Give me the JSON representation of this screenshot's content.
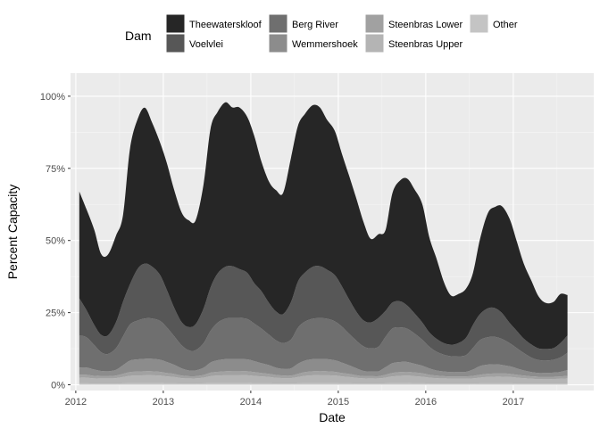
{
  "chart_data": {
    "type": "area",
    "stacked": true,
    "xlabel": "Date",
    "ylabel": "Percent Capacity",
    "legend_title": "Dam",
    "legend_position": "top",
    "x_ticks": [
      2012,
      2013,
      2014,
      2015,
      2016,
      2017
    ],
    "y_ticks": [
      "0%",
      "25%",
      "50%",
      "75%",
      "100%"
    ],
    "xlim": [
      2011.94,
      2017.92
    ],
    "ylim": [
      -0.02,
      1.08
    ],
    "grid": true,
    "x": [
      2012.04,
      2012.12,
      2012.21,
      2012.29,
      2012.37,
      2012.46,
      2012.54,
      2012.62,
      2012.71,
      2012.79,
      2012.87,
      2012.96,
      2013.04,
      2013.12,
      2013.21,
      2013.29,
      2013.37,
      2013.46,
      2013.54,
      2013.62,
      2013.71,
      2013.79,
      2013.87,
      2013.96,
      2014.04,
      2014.12,
      2014.21,
      2014.29,
      2014.37,
      2014.46,
      2014.54,
      2014.62,
      2014.71,
      2014.79,
      2014.87,
      2014.96,
      2015.04,
      2015.12,
      2015.21,
      2015.29,
      2015.37,
      2015.46,
      2015.54,
      2015.62,
      2015.71,
      2015.79,
      2015.87,
      2015.96,
      2016.04,
      2016.12,
      2016.21,
      2016.29,
      2016.37,
      2016.46,
      2016.54,
      2016.62,
      2016.71,
      2016.79,
      2016.87,
      2016.96,
      2017.04,
      2017.12,
      2017.21,
      2017.29,
      2017.37,
      2017.46,
      2017.54,
      2017.62
    ],
    "series": [
      {
        "name": "Other",
        "color": "#c4c4c4",
        "values": [
          0.005,
          0.005,
          0.004,
          0.004,
          0.004,
          0.004,
          0.005,
          0.006,
          0.006,
          0.006,
          0.006,
          0.006,
          0.005,
          0.005,
          0.004,
          0.004,
          0.004,
          0.005,
          0.006,
          0.006,
          0.006,
          0.006,
          0.006,
          0.006,
          0.005,
          0.005,
          0.005,
          0.004,
          0.004,
          0.004,
          0.005,
          0.006,
          0.006,
          0.006,
          0.006,
          0.006,
          0.005,
          0.005,
          0.004,
          0.004,
          0.004,
          0.004,
          0.005,
          0.006,
          0.006,
          0.006,
          0.005,
          0.005,
          0.004,
          0.004,
          0.004,
          0.004,
          0.004,
          0.004,
          0.004,
          0.005,
          0.005,
          0.005,
          0.005,
          0.005,
          0.004,
          0.004,
          0.004,
          0.004,
          0.004,
          0.004,
          0.004,
          0.004
        ]
      },
      {
        "name": "Steenbras Upper",
        "color": "#b4b4b4",
        "values": [
          0.02,
          0.02,
          0.018,
          0.018,
          0.018,
          0.019,
          0.022,
          0.025,
          0.026,
          0.027,
          0.027,
          0.026,
          0.024,
          0.022,
          0.019,
          0.018,
          0.018,
          0.02,
          0.024,
          0.026,
          0.027,
          0.027,
          0.027,
          0.027,
          0.026,
          0.024,
          0.022,
          0.02,
          0.019,
          0.019,
          0.022,
          0.025,
          0.027,
          0.027,
          0.027,
          0.026,
          0.024,
          0.022,
          0.02,
          0.018,
          0.018,
          0.018,
          0.02,
          0.023,
          0.025,
          0.026,
          0.025,
          0.023,
          0.021,
          0.019,
          0.018,
          0.017,
          0.017,
          0.017,
          0.018,
          0.02,
          0.022,
          0.023,
          0.023,
          0.022,
          0.021,
          0.019,
          0.017,
          0.016,
          0.016,
          0.016,
          0.017,
          0.018
        ]
      },
      {
        "name": "Steenbras Lower",
        "color": "#a1a1a1",
        "values": [
          0.01,
          0.01,
          0.009,
          0.008,
          0.008,
          0.009,
          0.011,
          0.013,
          0.014,
          0.014,
          0.014,
          0.013,
          0.012,
          0.011,
          0.009,
          0.008,
          0.008,
          0.009,
          0.012,
          0.013,
          0.014,
          0.014,
          0.014,
          0.014,
          0.013,
          0.012,
          0.011,
          0.01,
          0.009,
          0.009,
          0.011,
          0.013,
          0.014,
          0.014,
          0.014,
          0.013,
          0.012,
          0.011,
          0.009,
          0.008,
          0.008,
          0.008,
          0.01,
          0.012,
          0.013,
          0.013,
          0.013,
          0.012,
          0.01,
          0.009,
          0.008,
          0.008,
          0.008,
          0.008,
          0.009,
          0.01,
          0.011,
          0.011,
          0.011,
          0.011,
          0.01,
          0.009,
          0.008,
          0.008,
          0.008,
          0.008,
          0.008,
          0.009
        ]
      },
      {
        "name": "Wemmershoek",
        "color": "#8c8c8c",
        "values": [
          0.025,
          0.025,
          0.022,
          0.018,
          0.017,
          0.02,
          0.03,
          0.04,
          0.042,
          0.043,
          0.043,
          0.042,
          0.038,
          0.032,
          0.025,
          0.02,
          0.02,
          0.025,
          0.035,
          0.04,
          0.042,
          0.042,
          0.042,
          0.041,
          0.038,
          0.034,
          0.03,
          0.025,
          0.023,
          0.025,
          0.035,
          0.04,
          0.042,
          0.042,
          0.042,
          0.04,
          0.036,
          0.03,
          0.024,
          0.018,
          0.016,
          0.017,
          0.026,
          0.034,
          0.035,
          0.034,
          0.03,
          0.026,
          0.022,
          0.018,
          0.016,
          0.015,
          0.015,
          0.016,
          0.022,
          0.03,
          0.032,
          0.032,
          0.03,
          0.026,
          0.022,
          0.018,
          0.015,
          0.013,
          0.013,
          0.014,
          0.016,
          0.02
        ]
      },
      {
        "name": "Berg River",
        "color": "#6f6f6f",
        "values": [
          0.11,
          0.105,
          0.085,
          0.065,
          0.06,
          0.075,
          0.1,
          0.125,
          0.135,
          0.14,
          0.14,
          0.135,
          0.12,
          0.1,
          0.08,
          0.07,
          0.07,
          0.085,
          0.11,
          0.13,
          0.14,
          0.142,
          0.142,
          0.14,
          0.13,
          0.12,
          0.105,
          0.095,
          0.09,
          0.1,
          0.125,
          0.135,
          0.14,
          0.142,
          0.14,
          0.135,
          0.125,
          0.11,
          0.095,
          0.085,
          0.08,
          0.085,
          0.105,
          0.12,
          0.12,
          0.115,
          0.105,
          0.09,
          0.075,
          0.065,
          0.058,
          0.055,
          0.055,
          0.058,
          0.075,
          0.09,
          0.095,
          0.095,
          0.09,
          0.08,
          0.07,
          0.06,
          0.05,
          0.045,
          0.043,
          0.045,
          0.05,
          0.06
        ]
      },
      {
        "name": "Voelvlei",
        "color": "#575757",
        "values": [
          0.13,
          0.095,
          0.07,
          0.06,
          0.065,
          0.09,
          0.12,
          0.14,
          0.18,
          0.19,
          0.18,
          0.16,
          0.13,
          0.1,
          0.08,
          0.08,
          0.09,
          0.12,
          0.15,
          0.17,
          0.18,
          0.18,
          0.17,
          0.16,
          0.14,
          0.13,
          0.11,
          0.1,
          0.1,
          0.13,
          0.16,
          0.17,
          0.18,
          0.18,
          0.17,
          0.16,
          0.14,
          0.12,
          0.1,
          0.09,
          0.09,
          0.1,
          0.09,
          0.09,
          0.09,
          0.08,
          0.07,
          0.06,
          0.05,
          0.045,
          0.04,
          0.04,
          0.045,
          0.06,
          0.08,
          0.09,
          0.1,
          0.1,
          0.09,
          0.07,
          0.06,
          0.05,
          0.045,
          0.04,
          0.04,
          0.04,
          0.05,
          0.06
        ]
      },
      {
        "name": "Theewaterskloof",
        "color": "#262626",
        "values": [
          0.37,
          0.35,
          0.33,
          0.28,
          0.28,
          0.3,
          0.3,
          0.47,
          0.52,
          0.54,
          0.5,
          0.46,
          0.44,
          0.41,
          0.38,
          0.37,
          0.36,
          0.43,
          0.55,
          0.56,
          0.57,
          0.55,
          0.56,
          0.54,
          0.51,
          0.45,
          0.42,
          0.42,
          0.42,
          0.5,
          0.54,
          0.55,
          0.56,
          0.55,
          0.52,
          0.5,
          0.46,
          0.43,
          0.39,
          0.34,
          0.29,
          0.29,
          0.28,
          0.38,
          0.42,
          0.44,
          0.43,
          0.41,
          0.33,
          0.28,
          0.21,
          0.17,
          0.17,
          0.17,
          0.18,
          0.26,
          0.33,
          0.35,
          0.37,
          0.36,
          0.31,
          0.26,
          0.22,
          0.18,
          0.16,
          0.16,
          0.17,
          0.14
        ]
      }
    ]
  },
  "legend": {
    "title": "Dam",
    "items": [
      {
        "label": "Theewaterskloof",
        "color": "#262626"
      },
      {
        "label": "Voelvlei",
        "color": "#575757"
      },
      {
        "label": "Berg River",
        "color": "#6f6f6f"
      },
      {
        "label": "Wemmershoek",
        "color": "#8c8c8c"
      },
      {
        "label": "Steenbras Lower",
        "color": "#a1a1a1"
      },
      {
        "label": "Steenbras Upper",
        "color": "#b4b4b4"
      },
      {
        "label": "Other",
        "color": "#c4c4c4"
      }
    ]
  },
  "colors": {
    "panel_background": "#ebebeb",
    "grid_major": "#ffffff",
    "grid_minor": "#f5f5f5"
  }
}
